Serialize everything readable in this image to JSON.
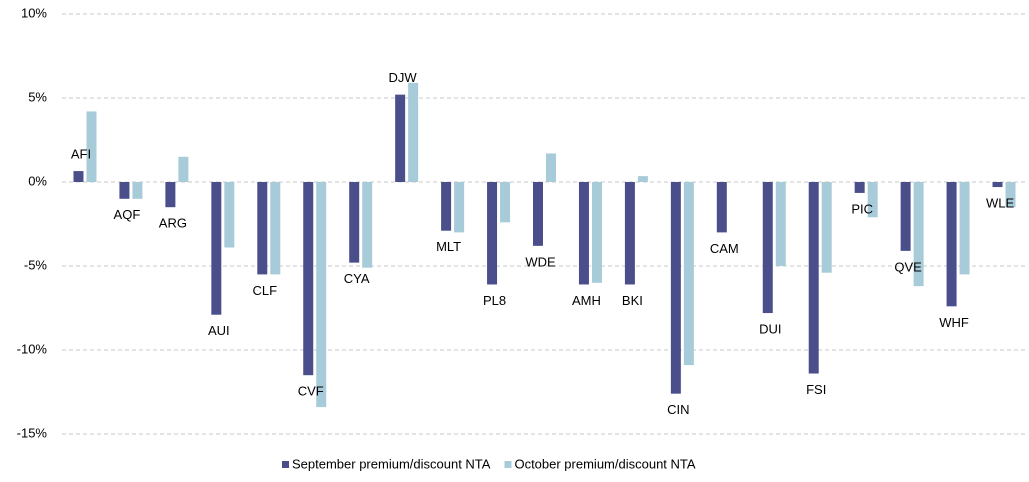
{
  "chart_data": {
    "type": "bar",
    "categories": [
      "AFI",
      "AQF",
      "ARG",
      "AUI",
      "CLF",
      "CVF",
      "CYA",
      "DJW",
      "MLT",
      "PL8",
      "WDE",
      "AMH",
      "BKI",
      "CIN",
      "CAM",
      "DUI",
      "FSI",
      "PIC",
      "QVE",
      "WHF",
      "WLE"
    ],
    "series": [
      {
        "name": "September premium/discount NTA",
        "color": "#4a4f8c",
        "values": [
          0.65,
          -1.0,
          -1.5,
          -7.9,
          -5.5,
          -11.5,
          -4.8,
          5.2,
          -2.9,
          -6.1,
          -3.8,
          -6.1,
          -6.1,
          -12.6,
          -3.0,
          -7.8,
          -11.4,
          -0.65,
          -4.1,
          -7.4,
          -0.3
        ]
      },
      {
        "name": "October premium/discount NTA",
        "color": "#a8cbd9",
        "values": [
          4.2,
          -1.0,
          1.5,
          -3.9,
          -5.5,
          -13.4,
          -5.1,
          5.9,
          -3.0,
          -2.4,
          1.7,
          -6.0,
          0.35,
          -10.9,
          null,
          -5.0,
          -5.4,
          -2.1,
          -6.2,
          -5.5,
          -1.5
        ]
      }
    ],
    "ylim": [
      -15,
      10
    ],
    "yticks": [
      {
        "value": -15,
        "label": "-15%"
      },
      {
        "value": -10,
        "label": "-10%"
      },
      {
        "value": -5,
        "label": "-5%"
      },
      {
        "value": 0,
        "label": "0%"
      },
      {
        "value": 5,
        "label": "5%"
      },
      {
        "value": 10,
        "label": "10%"
      }
    ],
    "grid": true,
    "legend": "bottom"
  }
}
